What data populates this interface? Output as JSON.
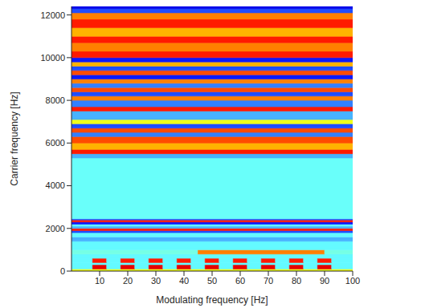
{
  "chart_data": {
    "type": "heatmap",
    "xlabel": "Modulating frequency [Hz]",
    "ylabel": "Carrier frequency [Hz]",
    "xlim": [
      0,
      100
    ],
    "xticks": [
      10,
      20,
      30,
      40,
      50,
      60,
      70,
      80,
      90,
      100
    ],
    "ylim": [
      0,
      12400
    ],
    "yticks": [
      0,
      2000,
      4000,
      6000,
      8000,
      10000,
      12000
    ],
    "zlim": [
      0,
      1
    ],
    "cells": [
      {
        "x": [
          0,
          100
        ],
        "y": [
          0,
          100
        ],
        "value": 0.6
      },
      {
        "x": [
          0,
          7.5
        ],
        "y": [
          100,
          300
        ],
        "value": 0.37
      },
      {
        "x": [
          7.5,
          12.5
        ],
        "y": [
          100,
          300
        ],
        "value": 0.9
      },
      {
        "x": [
          12.5,
          17.5
        ],
        "y": [
          100,
          300
        ],
        "value": 0.37
      },
      {
        "x": [
          17.5,
          22.5
        ],
        "y": [
          100,
          300
        ],
        "value": 0.9
      },
      {
        "x": [
          22.5,
          27.5
        ],
        "y": [
          100,
          300
        ],
        "value": 0.37
      },
      {
        "x": [
          27.5,
          32.5
        ],
        "y": [
          100,
          300
        ],
        "value": 0.9
      },
      {
        "x": [
          32.5,
          37.5
        ],
        "y": [
          100,
          300
        ],
        "value": 0.37
      },
      {
        "x": [
          37.5,
          42.5
        ],
        "y": [
          100,
          300
        ],
        "value": 0.9
      },
      {
        "x": [
          42.5,
          47.5
        ],
        "y": [
          100,
          300
        ],
        "value": 0.37
      },
      {
        "x": [
          47.5,
          52.5
        ],
        "y": [
          100,
          300
        ],
        "value": 0.9
      },
      {
        "x": [
          52.5,
          57.5
        ],
        "y": [
          100,
          300
        ],
        "value": 0.37
      },
      {
        "x": [
          57.5,
          62.5
        ],
        "y": [
          100,
          300
        ],
        "value": 0.9
      },
      {
        "x": [
          62.5,
          67.5
        ],
        "y": [
          100,
          300
        ],
        "value": 0.37
      },
      {
        "x": [
          67.5,
          72.5
        ],
        "y": [
          100,
          300
        ],
        "value": 0.9
      },
      {
        "x": [
          72.5,
          77.5
        ],
        "y": [
          100,
          300
        ],
        "value": 0.37
      },
      {
        "x": [
          77.5,
          82.5
        ],
        "y": [
          100,
          300
        ],
        "value": 0.9
      },
      {
        "x": [
          82.5,
          87.5
        ],
        "y": [
          100,
          300
        ],
        "value": 0.37
      },
      {
        "x": [
          87.5,
          92.5
        ],
        "y": [
          100,
          300
        ],
        "value": 0.9
      },
      {
        "x": [
          92.5,
          100
        ],
        "y": [
          100,
          300
        ],
        "value": 0.37
      },
      {
        "x": [
          0,
          100
        ],
        "y": [
          300,
          400
        ],
        "value": 0.37
      },
      {
        "x": [
          0,
          7.5
        ],
        "y": [
          400,
          600
        ],
        "value": 0.37
      },
      {
        "x": [
          7.5,
          12.5
        ],
        "y": [
          400,
          600
        ],
        "value": 0.85
      },
      {
        "x": [
          12.5,
          17.5
        ],
        "y": [
          400,
          600
        ],
        "value": 0.37
      },
      {
        "x": [
          17.5,
          22.5
        ],
        "y": [
          400,
          600
        ],
        "value": 0.85
      },
      {
        "x": [
          22.5,
          27.5
        ],
        "y": [
          400,
          600
        ],
        "value": 0.37
      },
      {
        "x": [
          27.5,
          32.5
        ],
        "y": [
          400,
          600
        ],
        "value": 0.85
      },
      {
        "x": [
          32.5,
          37.5
        ],
        "y": [
          400,
          600
        ],
        "value": 0.37
      },
      {
        "x": [
          37.5,
          42.5
        ],
        "y": [
          400,
          600
        ],
        "value": 0.85
      },
      {
        "x": [
          42.5,
          47.5
        ],
        "y": [
          400,
          600
        ],
        "value": 0.37
      },
      {
        "x": [
          47.5,
          52.5
        ],
        "y": [
          400,
          600
        ],
        "value": 0.85
      },
      {
        "x": [
          52.5,
          57.5
        ],
        "y": [
          400,
          600
        ],
        "value": 0.37
      },
      {
        "x": [
          57.5,
          62.5
        ],
        "y": [
          400,
          600
        ],
        "value": 0.85
      },
      {
        "x": [
          62.5,
          67.5
        ],
        "y": [
          400,
          600
        ],
        "value": 0.37
      },
      {
        "x": [
          67.5,
          72.5
        ],
        "y": [
          400,
          600
        ],
        "value": 0.85
      },
      {
        "x": [
          72.5,
          77.5
        ],
        "y": [
          400,
          600
        ],
        "value": 0.37
      },
      {
        "x": [
          77.5,
          82.5
        ],
        "y": [
          400,
          600
        ],
        "value": 0.85
      },
      {
        "x": [
          82.5,
          87.5
        ],
        "y": [
          400,
          600
        ],
        "value": 0.37
      },
      {
        "x": [
          87.5,
          92.5
        ],
        "y": [
          400,
          600
        ],
        "value": 0.85
      },
      {
        "x": [
          92.5,
          100
        ],
        "y": [
          400,
          600
        ],
        "value": 0.37
      },
      {
        "x": [
          0,
          100
        ],
        "y": [
          600,
          800
        ],
        "value": 0.37
      },
      {
        "x": [
          0,
          45
        ],
        "y": [
          800,
          1000
        ],
        "value": 0.4
      },
      {
        "x": [
          45,
          90
        ],
        "y": [
          800,
          1000
        ],
        "value": 0.75
      },
      {
        "x": [
          90,
          100
        ],
        "y": [
          800,
          1000
        ],
        "value": 0.4
      },
      {
        "x": [
          0,
          100
        ],
        "y": [
          1000,
          1400
        ],
        "value": 0.37
      },
      {
        "x": [
          0,
          100
        ],
        "y": [
          1400,
          1600
        ],
        "value": 0.3
      },
      {
        "x": [
          0,
          100
        ],
        "y": [
          1600,
          1800
        ],
        "value": 0.37
      },
      {
        "x": [
          0,
          100
        ],
        "y": [
          1800,
          1900
        ],
        "value": 0.2
      },
      {
        "x": [
          0,
          100
        ],
        "y": [
          1900,
          2000
        ],
        "value": 0.85
      },
      {
        "x": [
          0,
          100
        ],
        "y": [
          2000,
          2100
        ],
        "value": 0.3
      },
      {
        "x": [
          0,
          100
        ],
        "y": [
          2100,
          2200
        ],
        "value": 0.37
      },
      {
        "x": [
          0,
          100
        ],
        "y": [
          2200,
          2300
        ],
        "value": 0.15
      },
      {
        "x": [
          0,
          100
        ],
        "y": [
          2300,
          2400
        ],
        "value": 0.85
      },
      {
        "x": [
          0,
          100
        ],
        "y": [
          2400,
          2450
        ],
        "value": 0.2
      },
      {
        "x": [
          0,
          100
        ],
        "y": [
          2450,
          5300
        ],
        "value": 0.38
      },
      {
        "x": [
          0,
          100
        ],
        "y": [
          5300,
          5500
        ],
        "value": 0.3
      },
      {
        "x": [
          0,
          100
        ],
        "y": [
          5500,
          5700
        ],
        "value": 0.85
      },
      {
        "x": [
          0,
          100
        ],
        "y": [
          5700,
          6000
        ],
        "value": 0.7
      },
      {
        "x": [
          0,
          100
        ],
        "y": [
          6000,
          6300
        ],
        "value": 0.8
      },
      {
        "x": [
          0,
          100
        ],
        "y": [
          6300,
          6500
        ],
        "value": 0.25
      },
      {
        "x": [
          0,
          100
        ],
        "y": [
          6500,
          6700
        ],
        "value": 0.8
      },
      {
        "x": [
          0,
          100
        ],
        "y": [
          6700,
          6900
        ],
        "value": 0.2
      },
      {
        "x": [
          0,
          100
        ],
        "y": [
          6900,
          7100
        ],
        "value": 0.6
      },
      {
        "x": [
          0,
          100
        ],
        "y": [
          7100,
          7500
        ],
        "value": 0.3
      },
      {
        "x": [
          0,
          100
        ],
        "y": [
          7500,
          7700
        ],
        "value": 0.85
      },
      {
        "x": [
          0,
          100
        ],
        "y": [
          7700,
          8000
        ],
        "value": 0.25
      },
      {
        "x": [
          0,
          100
        ],
        "y": [
          8000,
          8200
        ],
        "value": 0.75
      },
      {
        "x": [
          0,
          100
        ],
        "y": [
          8200,
          8400
        ],
        "value": 0.2
      },
      {
        "x": [
          0,
          100
        ],
        "y": [
          8400,
          8600
        ],
        "value": 0.8
      },
      {
        "x": [
          0,
          100
        ],
        "y": [
          8600,
          8800
        ],
        "value": 0.25
      },
      {
        "x": [
          0,
          100
        ],
        "y": [
          8800,
          9000
        ],
        "value": 0.75
      },
      {
        "x": [
          0,
          100
        ],
        "y": [
          9000,
          9200
        ],
        "value": 0.15
      },
      {
        "x": [
          0,
          100
        ],
        "y": [
          9200,
          9400
        ],
        "value": 0.8
      },
      {
        "x": [
          0,
          100
        ],
        "y": [
          9400,
          9600
        ],
        "value": 0.2
      },
      {
        "x": [
          0,
          100
        ],
        "y": [
          9600,
          9800
        ],
        "value": 0.7
      },
      {
        "x": [
          0,
          100
        ],
        "y": [
          9800,
          10000
        ],
        "value": 0.15
      },
      {
        "x": [
          0,
          100
        ],
        "y": [
          10000,
          10300
        ],
        "value": 0.85
      },
      {
        "x": [
          0,
          100
        ],
        "y": [
          10300,
          10700
        ],
        "value": 0.75
      },
      {
        "x": [
          0,
          100
        ],
        "y": [
          10700,
          11000
        ],
        "value": 0.85
      },
      {
        "x": [
          0,
          100
        ],
        "y": [
          11000,
          11400
        ],
        "value": 0.7
      },
      {
        "x": [
          0,
          100
        ],
        "y": [
          11400,
          11800
        ],
        "value": 0.85
      },
      {
        "x": [
          0,
          100
        ],
        "y": [
          11800,
          12100
        ],
        "value": 0.75
      },
      {
        "x": [
          0,
          100
        ],
        "y": [
          12100,
          12300
        ],
        "value": 0.2
      },
      {
        "x": [
          0,
          100
        ],
        "y": [
          12300,
          12400
        ],
        "value": 0.1
      }
    ]
  }
}
